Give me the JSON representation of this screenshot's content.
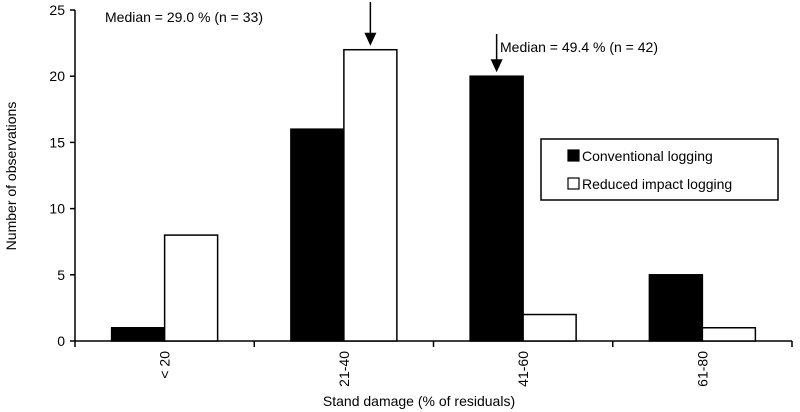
{
  "chart_data": {
    "type": "bar",
    "categories": [
      "< 20",
      "21-40",
      "41-60",
      "61-80"
    ],
    "series": [
      {
        "name": "Conventional logging",
        "values": [
          1,
          16,
          20,
          5
        ],
        "color": "#000000"
      },
      {
        "name": "Reduced impact logging",
        "values": [
          8,
          22,
          2,
          1
        ],
        "color": "#ffffff"
      }
    ],
    "xlabel": "Stand damage (% of residuals)",
    "ylabel": "Number of observations",
    "ylim": [
      0,
      25
    ],
    "yticks": [
      0,
      5,
      10,
      15,
      20,
      25
    ],
    "grid": false,
    "legend_position": "right",
    "annotations": [
      {
        "text": "Median = 29.0 % (n = 33)",
        "category": "21-40",
        "series": 1
      },
      {
        "text": "Median = 49.4 % (n = 42)",
        "category": "41-60",
        "series": 0
      }
    ]
  }
}
